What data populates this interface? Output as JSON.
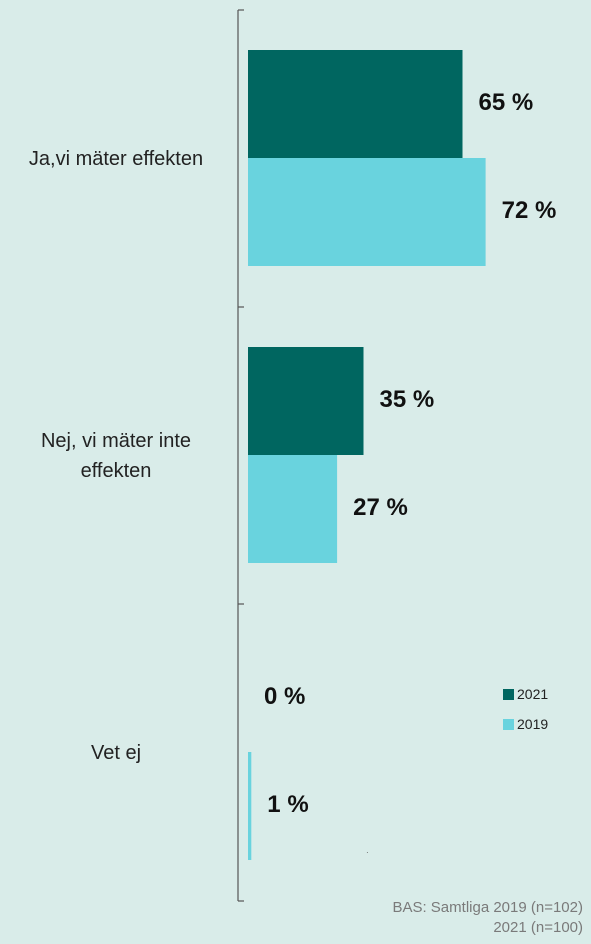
{
  "chart_data": {
    "type": "bar",
    "orientation": "horizontal",
    "categories": [
      "Ja,vi mäter effekten",
      "Nej, vi mäter inte\neffekten",
      "Vet ej"
    ],
    "series": [
      {
        "name": "2021",
        "color": "#006660",
        "values": [
          65,
          35,
          0
        ],
        "labels": [
          "65 %",
          "35 %",
          "0 %"
        ]
      },
      {
        "name": "2019",
        "color": "#69d3de",
        "values": [
          72,
          27,
          1
        ],
        "labels": [
          "72 %",
          "27 %",
          "1 %"
        ]
      }
    ],
    "xlim": [
      0,
      100
    ],
    "grid": false,
    "legend_position": "right"
  },
  "note": {
    "line1": "BAS: Samtliga 2019 (n=102)",
    "line2": "2021 (n=100)"
  }
}
